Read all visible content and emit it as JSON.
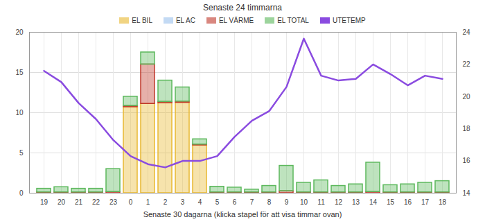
{
  "chart_data": {
    "type": "bar",
    "title": "Senaste 24 timmarna",
    "caption": "Senaste 30 dagarna (klicka stapel för att visa timmar ovan)",
    "stacked": true,
    "grid": true,
    "legend": "top",
    "categories": [
      "19",
      "20",
      "21",
      "22",
      "23",
      "0",
      "1",
      "2",
      "3",
      "4",
      "5",
      "6",
      "7",
      "8",
      "9",
      "10",
      "11",
      "12",
      "13",
      "14",
      "15",
      "16",
      "17",
      "18"
    ],
    "ylim": [
      0,
      20
    ],
    "yticks": [
      0,
      5,
      10,
      15,
      20
    ],
    "y2lim": [
      14,
      24
    ],
    "y2ticks": [
      14,
      16,
      18,
      20,
      22,
      24
    ],
    "series": [
      {
        "name": "EL BIL",
        "color": "#e8b830",
        "values": [
          0,
          0,
          0,
          0,
          0,
          10.7,
          11.1,
          11.2,
          11.25,
          5.95,
          0,
          0,
          0,
          0,
          0,
          0,
          0,
          0,
          0,
          0,
          0,
          0,
          0,
          0
        ]
      },
      {
        "name": "EL AC",
        "color": "#9cc3ee",
        "values": [
          0,
          0,
          0,
          0,
          0,
          0,
          0,
          0,
          0,
          0,
          0,
          0,
          0,
          0,
          0,
          0,
          0,
          0,
          0,
          0,
          0,
          0,
          0,
          0
        ]
      },
      {
        "name": "EL VÄRME",
        "color": "#c0392b",
        "values": [
          0.1,
          0.1,
          0.1,
          0.1,
          0.15,
          0.15,
          4.9,
          0.15,
          0.15,
          0.1,
          0.1,
          0.1,
          0.1,
          0.1,
          0.25,
          0.1,
          0.1,
          0.1,
          0.1,
          0.15,
          0.1,
          0.1,
          0.1,
          0.1
        ]
      },
      {
        "name": "EL TOTAL",
        "color": "#5cb85c",
        "values": [
          0.45,
          0.65,
          0.45,
          0.45,
          2.85,
          1.15,
          1.5,
          2.65,
          1.75,
          0.65,
          0.7,
          0.6,
          0.35,
          0.8,
          3.15,
          1.2,
          1.5,
          0.8,
          1.0,
          3.65,
          0.9,
          1.0,
          1.2,
          1.4
        ]
      },
      {
        "name": "UTETEMP",
        "color": "#8a4be0",
        "type": "line",
        "axis": "y2",
        "values": [
          21.6,
          20.9,
          19.6,
          18.6,
          17.3,
          16.3,
          15.8,
          15.6,
          16.0,
          16.0,
          16.3,
          17.5,
          18.5,
          19.1,
          20.6,
          23.6,
          21.3,
          21.0,
          21.1,
          22.0,
          21.4,
          20.7,
          21.3,
          21.1
        ]
      }
    ]
  }
}
